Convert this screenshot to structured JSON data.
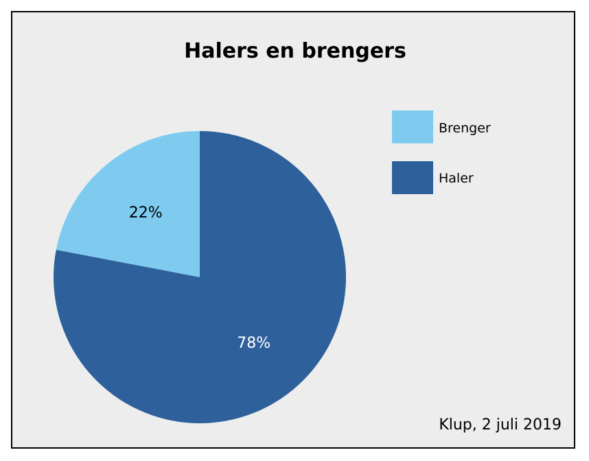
{
  "chart_data": {
    "type": "pie",
    "title": "Halers en brengers",
    "slices": [
      {
        "name": "Haler",
        "value": 78,
        "label": "78%",
        "color": "#2e609b",
        "label_color": "#ffffff"
      },
      {
        "name": "Brenger",
        "value": 22,
        "label": "22%",
        "color": "#7fcbf0",
        "label_color": "#000000"
      }
    ],
    "start_angle_deg": 0,
    "direction": "clockwise",
    "legend": {
      "placement": "right",
      "entries": [
        {
          "label": "Brenger",
          "color": "#7fcbf0"
        },
        {
          "label": "Haler",
          "color": "#2e609b"
        }
      ]
    },
    "source": "Klup, 2 juli 2019"
  }
}
